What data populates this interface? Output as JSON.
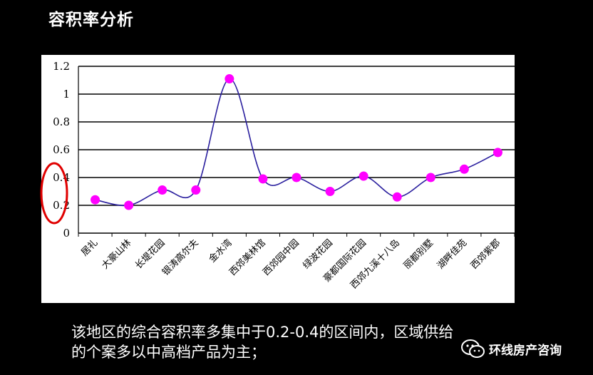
{
  "title": "容积率分析",
  "caption_lines": [
    "该地区的综合容积率多集中于0.2-0.4的区间内，区域供给",
    "的个案多以中高档产品为主；"
  ],
  "watermark": {
    "text": "环线房产咨询",
    "icon": "wechat-icon"
  },
  "colors": {
    "line": "#2a1f9e",
    "marker": "#ff00ff",
    "highlight_ring": "#e00000",
    "grid": "#000000"
  },
  "chart_data": {
    "type": "line",
    "title": "",
    "xlabel": "",
    "ylabel": "",
    "categories": [
      "居礼",
      "大豪山林",
      "长堤花园",
      "银涛高尔夫",
      "金水湾",
      "西郊美林馆",
      "西郊园中园",
      "绿波花园",
      "豪都国际花园",
      "西郊九溪十八岛",
      "丽都别墅",
      "湖畔佳苑",
      "西郊紫郡"
    ],
    "series": [
      {
        "values": [
          0.24,
          0.2,
          0.31,
          0.31,
          1.11,
          0.39,
          0.4,
          0.3,
          0.41,
          0.26,
          0.4,
          0.46,
          0.58
        ]
      }
    ],
    "ylim": [
      0,
      1.2
    ],
    "yticks": [
      "0",
      "0.2",
      "0.4",
      "0.6",
      "0.8",
      "1",
      "1.2"
    ],
    "grid": true,
    "legend": "none",
    "annotation": "red-ellipse-around-0.2-0.4"
  }
}
